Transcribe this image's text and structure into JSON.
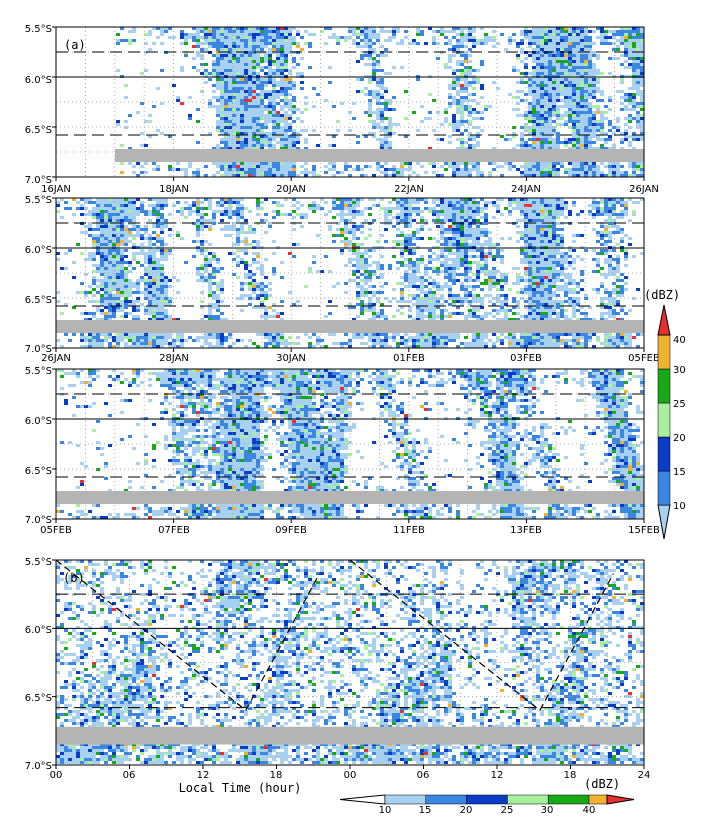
{
  "chart_data": [
    {
      "type": "heatmap",
      "panel_label": "(a)",
      "y_ticks": [
        "5.5°S",
        "6.0°S",
        "6.5°S",
        "7.0°S"
      ],
      "x_ticks": [
        "16JAN",
        "18JAN",
        "20JAN",
        "22JAN",
        "24JAN",
        "26JAN"
      ],
      "ylim": [
        "5.5°S",
        "7.0°S"
      ],
      "data_start": "17JAN",
      "grey_band": "6.75°S"
    },
    {
      "type": "heatmap",
      "y_ticks": [
        "5.5°S",
        "6.0°S",
        "6.5°S",
        "7.0°S"
      ],
      "x_ticks": [
        "26JAN",
        "28JAN",
        "30JAN",
        "01FEB",
        "03FEB",
        "05FEB"
      ],
      "ylim": [
        "5.5°S",
        "7.0°S"
      ]
    },
    {
      "type": "heatmap",
      "y_ticks": [
        "5.5°S",
        "6.0°S",
        "6.5°S",
        "7.0°S"
      ],
      "x_ticks": [
        "05FEB",
        "07FEB",
        "09FEB",
        "11FEB",
        "13FEB",
        "15FEB"
      ],
      "ylim": [
        "5.5°S",
        "7.0°S"
      ]
    },
    {
      "type": "heatmap",
      "panel_label": "(b)",
      "y_ticks": [
        "5.5°S",
        "6.0°S",
        "6.5°S",
        "7.0°S"
      ],
      "x_ticks": [
        "00",
        "06",
        "12",
        "18",
        "00",
        "06",
        "12",
        "18",
        "24"
      ],
      "xlabel": "Local Time (hour)",
      "ylim": [
        "5.5°S",
        "7.0°S"
      ]
    }
  ],
  "colorbars": {
    "unit": "(dBZ)",
    "vertical_labels": [
      "10",
      "15",
      "20",
      "25",
      "30",
      "40"
    ],
    "horizontal_labels": [
      "10",
      "15",
      "20",
      "25",
      "30",
      "40"
    ],
    "levels": [
      10,
      15,
      20,
      25,
      30,
      40
    ],
    "colors": [
      "#a8d0f0",
      "#3a86e0",
      "#0a3cc8",
      "#a8f0a0",
      "#18a818",
      "#f0b030",
      "#e83030"
    ]
  },
  "reference_lines": {
    "solid": [
      "6.0°S"
    ],
    "dashed": [
      "5.75°S",
      "6.58°S"
    ]
  },
  "band_color": "#b4b4b4"
}
